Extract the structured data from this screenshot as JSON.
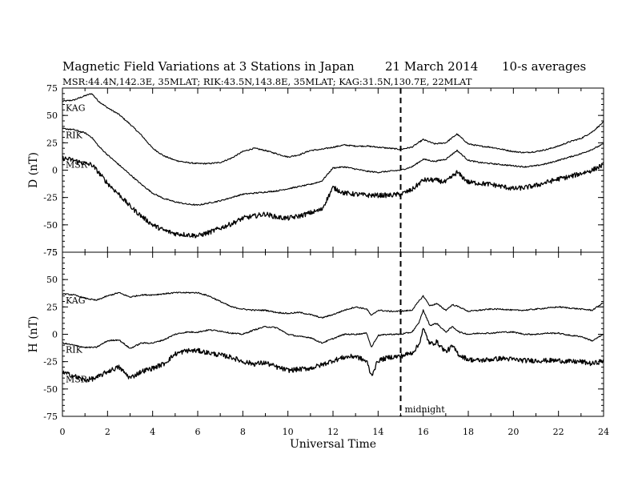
{
  "title": {
    "main": "Magnetic Field Variations at 3 Stations in Japan",
    "date": "21 March   2014",
    "averaging": "10-s averages",
    "stations_line": "MSR:44.4N,142.3E, 35MLAT;  RIK:43.5N,143.8E, 35MLAT;  KAG:31.5N,130.7E, 22MLAT"
  },
  "xlabel": "Universal Time",
  "xticks": [
    "0",
    "2",
    "4",
    "6",
    "8",
    "10",
    "12",
    "14",
    "16",
    "18",
    "20",
    "22",
    "24"
  ],
  "annotation": {
    "text": "midnight",
    "x": 15
  },
  "chart_data": [
    {
      "type": "line",
      "panel": "top",
      "ylabel": "D (nT)",
      "xlim": [
        0,
        24
      ],
      "ylim": [
        -75,
        75
      ],
      "yticks": [
        "75",
        "50",
        "25",
        "0",
        "-25",
        "-50",
        "-75"
      ],
      "series": [
        {
          "name": "KAG",
          "color": "#000000",
          "noise": 0.6,
          "x": [
            0,
            0.5,
            1,
            1.3,
            1.6,
            2,
            2.5,
            3,
            3.5,
            4,
            4.5,
            5,
            5.5,
            6,
            6.5,
            7,
            7.5,
            8,
            8.5,
            9,
            9.5,
            10,
            10.5,
            11,
            11.5,
            12,
            12.5,
            13,
            13.5,
            14,
            14.5,
            15,
            15.5,
            16,
            16.5,
            17,
            17.5,
            18,
            18.5,
            19,
            19.5,
            20,
            20.5,
            21,
            21.5,
            22,
            22.5,
            23,
            23.5,
            24
          ],
          "y": [
            63,
            64,
            68,
            70,
            63,
            57,
            51,
            42,
            32,
            20,
            13,
            9,
            7,
            6,
            6,
            7,
            11,
            17,
            20,
            18,
            15,
            12,
            14,
            18,
            19,
            21,
            23,
            22,
            22,
            21,
            20,
            19,
            21,
            28,
            24,
            25,
            33,
            24,
            22,
            21,
            19,
            17,
            16,
            17,
            19,
            22,
            26,
            29,
            35,
            44
          ]
        },
        {
          "name": "RIK",
          "color": "#000000",
          "noise": 0.6,
          "x": [
            0,
            0.5,
            1,
            1.3,
            1.6,
            2,
            2.5,
            3,
            3.5,
            4,
            4.5,
            5,
            5.5,
            6,
            6.5,
            7,
            7.5,
            8,
            8.5,
            9,
            9.5,
            10,
            10.5,
            11,
            11.5,
            12,
            12.5,
            13,
            13.5,
            14,
            14.5,
            15,
            15.5,
            16,
            16.5,
            17,
            17.5,
            18,
            18.5,
            19,
            19.5,
            20,
            20.5,
            21,
            21.5,
            22,
            22.5,
            23,
            23.5,
            24
          ],
          "y": [
            38,
            37,
            34,
            30,
            22,
            14,
            5,
            -4,
            -13,
            -21,
            -26,
            -29,
            -31,
            -32,
            -30,
            -28,
            -25,
            -22,
            -21,
            -20,
            -19,
            -17,
            -15,
            -13,
            -10,
            2,
            3,
            1,
            -1,
            -2,
            -1,
            0,
            3,
            10,
            8,
            10,
            18,
            9,
            7,
            6,
            5,
            4,
            3,
            4,
            6,
            9,
            12,
            15,
            19,
            24
          ]
        },
        {
          "name": "MSR",
          "color": "#000000",
          "noise": 2.2,
          "x": [
            0,
            0.5,
            1,
            1.3,
            1.6,
            2,
            2.5,
            3,
            3.5,
            4,
            4.5,
            5,
            5.5,
            6,
            6.5,
            7,
            7.5,
            8,
            8.5,
            9,
            9.5,
            10,
            10.5,
            11,
            11.5,
            12,
            12.5,
            13,
            13.5,
            14,
            14.5,
            15,
            15.5,
            16,
            16.5,
            17,
            17.5,
            18,
            18.5,
            19,
            19.5,
            20,
            20.5,
            21,
            21.5,
            22,
            22.5,
            23,
            23.5,
            24
          ],
          "y": [
            11,
            9,
            6,
            5,
            -2,
            -12,
            -22,
            -33,
            -42,
            -50,
            -55,
            -58,
            -59,
            -60,
            -57,
            -53,
            -49,
            -44,
            -42,
            -40,
            -43,
            -44,
            -42,
            -39,
            -36,
            -16,
            -21,
            -22,
            -23,
            -23,
            -23,
            -22,
            -18,
            -9,
            -9,
            -11,
            -2,
            -11,
            -12,
            -13,
            -15,
            -17,
            -16,
            -14,
            -11,
            -8,
            -6,
            -3,
            0,
            5
          ]
        }
      ]
    },
    {
      "type": "line",
      "panel": "bottom",
      "ylabel": "H (nT)",
      "xlim": [
        0,
        24
      ],
      "ylim": [
        -75,
        75
      ],
      "yticks": [
        "75",
        "50",
        "25",
        "0",
        "-25",
        "-50",
        "-75"
      ],
      "series": [
        {
          "name": "KAG",
          "color": "#000000",
          "noise": 0.6,
          "x": [
            0,
            0.5,
            1,
            1.5,
            2,
            2.5,
            3,
            3.5,
            4,
            4.5,
            5,
            5.5,
            6,
            6.5,
            7,
            7.5,
            8,
            8.5,
            9,
            9.5,
            10,
            10.5,
            11,
            11.5,
            12,
            12.5,
            13,
            13.5,
            13.7,
            14,
            14.5,
            15,
            15.5,
            15.8,
            16,
            16.3,
            16.6,
            17,
            17.3,
            17.6,
            18,
            18.5,
            19,
            19.5,
            20,
            20.5,
            21,
            21.5,
            22,
            22.5,
            23,
            23.5,
            24
          ],
          "y": [
            37,
            36,
            33,
            31,
            35,
            38,
            34,
            36,
            36,
            37,
            38,
            38,
            38,
            35,
            30,
            25,
            23,
            22,
            22,
            20,
            19,
            20,
            18,
            15,
            18,
            22,
            25,
            23,
            17,
            22,
            21,
            21,
            22,
            30,
            35,
            26,
            28,
            22,
            27,
            25,
            21,
            22,
            23,
            23,
            22,
            22,
            23,
            24,
            25,
            24,
            23,
            22,
            29
          ]
        },
        {
          "name": "RIK",
          "color": "#000000",
          "noise": 0.6,
          "x": [
            0,
            0.5,
            1,
            1.5,
            2,
            2.5,
            3,
            3.5,
            4,
            4.5,
            5,
            5.5,
            6,
            6.5,
            7,
            7.5,
            8,
            8.5,
            9,
            9.5,
            10,
            10.5,
            11,
            11.5,
            12,
            12.5,
            13,
            13.5,
            13.7,
            14,
            14.5,
            15,
            15.5,
            15.8,
            16,
            16.3,
            16.6,
            17,
            17.3,
            17.6,
            18,
            18.5,
            19,
            19.5,
            20,
            20.5,
            21,
            21.5,
            22,
            22.5,
            23,
            23.5,
            24
          ],
          "y": [
            -8,
            -10,
            -12,
            -12,
            -6,
            -5,
            -13,
            -8,
            -8,
            -5,
            0,
            2,
            2,
            4,
            3,
            1,
            0,
            4,
            7,
            6,
            0,
            -2,
            -3,
            -8,
            -4,
            0,
            0,
            1,
            -12,
            -1,
            0,
            0,
            2,
            10,
            22,
            8,
            10,
            2,
            7,
            2,
            0,
            1,
            1,
            2,
            2,
            0,
            0,
            1,
            1,
            -1,
            -2,
            -6,
            0
          ]
        },
        {
          "name": "MSR",
          "color": "#000000",
          "noise": 2.2,
          "x": [
            0,
            0.5,
            1,
            1.5,
            2,
            2.5,
            3,
            3.5,
            4,
            4.5,
            5,
            5.5,
            6,
            6.5,
            7,
            7.5,
            8,
            8.5,
            9,
            9.5,
            10,
            10.5,
            11,
            11.5,
            12,
            12.5,
            13,
            13.5,
            13.7,
            14,
            14.5,
            15,
            15.5,
            15.8,
            16,
            16.3,
            16.6,
            17,
            17.3,
            17.6,
            18,
            18.5,
            19,
            19.5,
            20,
            20.5,
            21,
            21.5,
            22,
            22.5,
            23,
            23.5,
            24
          ],
          "y": [
            -35,
            -38,
            -42,
            -40,
            -34,
            -30,
            -40,
            -34,
            -31,
            -27,
            -18,
            -15,
            -15,
            -17,
            -19,
            -21,
            -25,
            -27,
            -26,
            -30,
            -33,
            -32,
            -31,
            -28,
            -24,
            -21,
            -20,
            -25,
            -38,
            -24,
            -21,
            -20,
            -17,
            -10,
            5,
            -9,
            -7,
            -16,
            -11,
            -19,
            -23,
            -24,
            -23,
            -22,
            -23,
            -24,
            -24,
            -24,
            -24,
            -25,
            -25,
            -27,
            -24
          ]
        }
      ]
    }
  ]
}
